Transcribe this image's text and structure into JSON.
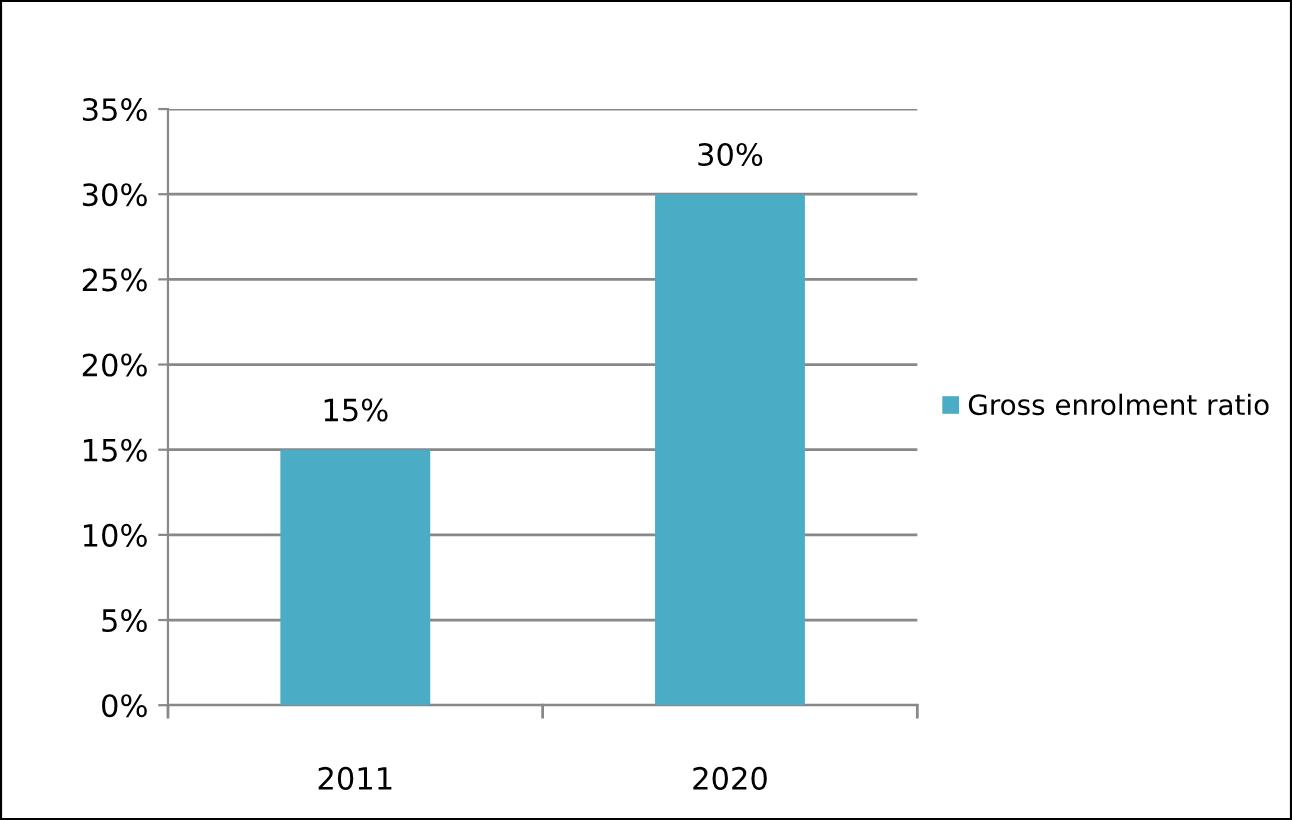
{
  "chart_data": {
    "type": "bar",
    "categories": [
      "2011",
      "2020"
    ],
    "series": [
      {
        "name": "Gross enrolment ratio",
        "color": "#4bacc6",
        "values": [
          15,
          30
        ],
        "value_labels": [
          "15%",
          "30%"
        ]
      }
    ],
    "ylim": [
      0,
      35
    ],
    "yticks": [
      {
        "value": 0,
        "label": "0%"
      },
      {
        "value": 5,
        "label": "5%"
      },
      {
        "value": 10,
        "label": "10%"
      },
      {
        "value": 15,
        "label": "15%"
      },
      {
        "value": 20,
        "label": "20%"
      },
      {
        "value": 25,
        "label": "25%"
      },
      {
        "value": 30,
        "label": "30%"
      },
      {
        "value": 35,
        "label": "35%"
      }
    ],
    "grid": "y",
    "legend": "right"
  }
}
